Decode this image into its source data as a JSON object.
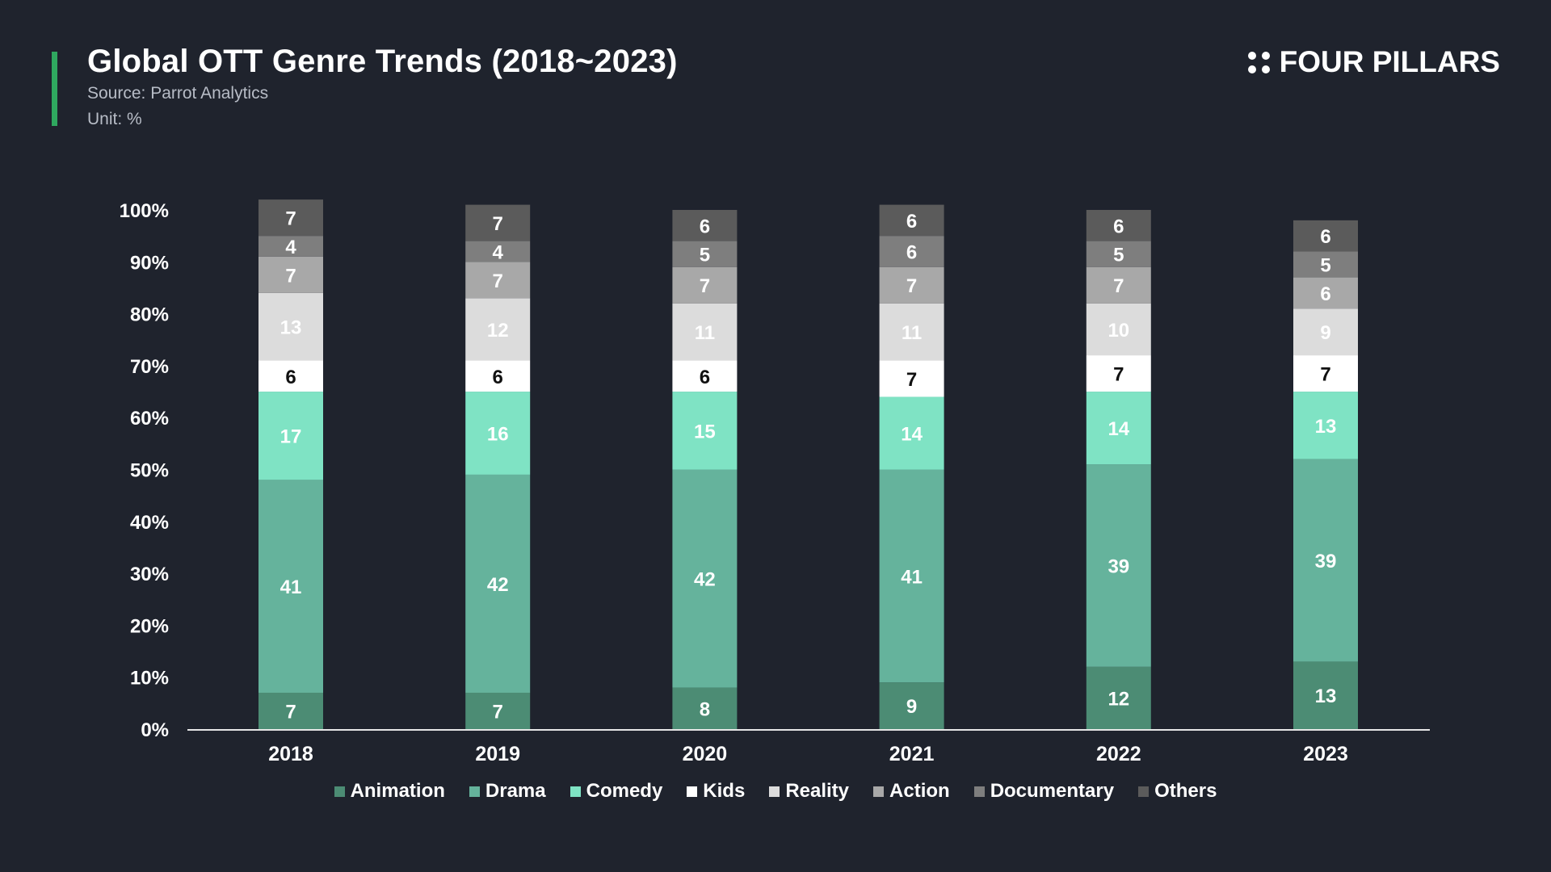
{
  "header": {
    "title": "Global OTT Genre Trends (2018~2023)",
    "source": "Source: Parrot Analytics",
    "unit": "Unit: %",
    "brand": "FOUR PILLARS"
  },
  "chart_data": {
    "type": "bar",
    "stacked": true,
    "categories": [
      "2018",
      "2019",
      "2020",
      "2021",
      "2022",
      "2023"
    ],
    "ylim": [
      0,
      100
    ],
    "yticks": [
      "0%",
      "10%",
      "20%",
      "30%",
      "40%",
      "50%",
      "60%",
      "70%",
      "80%",
      "90%",
      "100%"
    ],
    "legend_position": "bottom",
    "grid": false,
    "series": [
      {
        "name": "Animation",
        "color": "#4c8c74",
        "label_color": "#ffffff",
        "values": [
          7,
          7,
          8,
          9,
          12,
          13
        ]
      },
      {
        "name": "Drama",
        "color": "#65b39c",
        "label_color": "#ffffff",
        "values": [
          41,
          42,
          42,
          41,
          39,
          39
        ]
      },
      {
        "name": "Comedy",
        "color": "#7fe3c4",
        "label_color": "#ffffff",
        "values": [
          17,
          16,
          15,
          14,
          14,
          13
        ]
      },
      {
        "name": "Kids",
        "color": "#ffffff",
        "label_color": "#111111",
        "values": [
          6,
          6,
          6,
          7,
          7,
          7
        ]
      },
      {
        "name": "Reality",
        "color": "#dcdcdc",
        "label_color": "#ffffff",
        "values": [
          13,
          12,
          11,
          11,
          10,
          9
        ]
      },
      {
        "name": "Action",
        "color": "#a8a8a8",
        "label_color": "#ffffff",
        "values": [
          7,
          7,
          7,
          7,
          7,
          6
        ]
      },
      {
        "name": "Documentary",
        "color": "#7e7e7e",
        "label_color": "#ffffff",
        "values": [
          4,
          4,
          5,
          6,
          5,
          5
        ]
      },
      {
        "name": "Others",
        "color": "#5b5b5b",
        "label_color": "#ffffff",
        "values": [
          7,
          7,
          6,
          6,
          6,
          6
        ]
      }
    ]
  }
}
